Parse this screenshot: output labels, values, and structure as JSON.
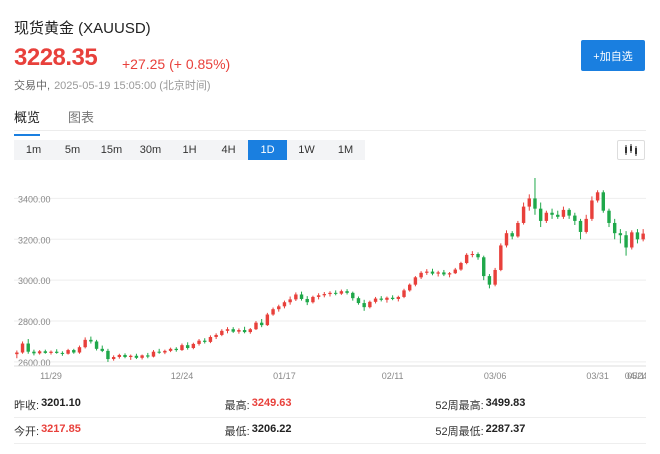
{
  "header": {
    "title": "现货黄金 (XAUUSD)",
    "price": "3228.35",
    "change": "+27.25 (+ 0.85%)",
    "status": "交易中,",
    "timestamp": "2025-05-19 15:05:00 (北京时间)",
    "add_button": "+加自选"
  },
  "tabs": [
    {
      "label": "概览",
      "active": true
    },
    {
      "label": "图表",
      "active": false
    }
  ],
  "periods": [
    {
      "label": "1m",
      "active": false
    },
    {
      "label": "5m",
      "active": false
    },
    {
      "label": "15m",
      "active": false
    },
    {
      "label": "30m",
      "active": false
    },
    {
      "label": "1H",
      "active": false
    },
    {
      "label": "4H",
      "active": false
    },
    {
      "label": "1D",
      "active": true
    },
    {
      "label": "1W",
      "active": false
    },
    {
      "label": "1M",
      "active": false
    }
  ],
  "chart_toggle_icon": "candlestick-icon",
  "colors": {
    "up": "#e8403b",
    "down": "#1fa84a",
    "accent": "#1a7fe0"
  },
  "chart_data": {
    "type": "candlestick",
    "y_ticks": [
      "3400.00",
      "3200.00",
      "3000.00",
      "2800.00",
      "2600.00"
    ],
    "ylim": [
      2580,
      3500
    ],
    "x_ticks": [
      "11/29",
      "12/24",
      "01/17",
      "02/11",
      "03/06",
      "03/31",
      "04/24",
      "05/1"
    ],
    "x_tick_index": [
      6,
      29,
      47,
      66,
      84,
      102,
      120,
      136
    ],
    "candles": [
      {
        "o": 2638,
        "h": 2656,
        "l": 2618,
        "c": 2646
      },
      {
        "o": 2646,
        "h": 2700,
        "l": 2640,
        "c": 2690
      },
      {
        "o": 2690,
        "h": 2712,
        "l": 2640,
        "c": 2650
      },
      {
        "o": 2650,
        "h": 2660,
        "l": 2632,
        "c": 2642
      },
      {
        "o": 2642,
        "h": 2658,
        "l": 2636,
        "c": 2652
      },
      {
        "o": 2652,
        "h": 2660,
        "l": 2640,
        "c": 2644
      },
      {
        "o": 2644,
        "h": 2656,
        "l": 2636,
        "c": 2650
      },
      {
        "o": 2650,
        "h": 2662,
        "l": 2640,
        "c": 2644
      },
      {
        "o": 2644,
        "h": 2652,
        "l": 2630,
        "c": 2640
      },
      {
        "o": 2640,
        "h": 2664,
        "l": 2636,
        "c": 2658
      },
      {
        "o": 2658,
        "h": 2664,
        "l": 2640,
        "c": 2646
      },
      {
        "o": 2646,
        "h": 2680,
        "l": 2640,
        "c": 2672
      },
      {
        "o": 2672,
        "h": 2720,
        "l": 2666,
        "c": 2708
      },
      {
        "o": 2708,
        "h": 2724,
        "l": 2690,
        "c": 2700
      },
      {
        "o": 2700,
        "h": 2708,
        "l": 2656,
        "c": 2664
      },
      {
        "o": 2664,
        "h": 2680,
        "l": 2648,
        "c": 2654
      },
      {
        "o": 2654,
        "h": 2664,
        "l": 2600,
        "c": 2614
      },
      {
        "o": 2614,
        "h": 2632,
        "l": 2606,
        "c": 2624
      },
      {
        "o": 2624,
        "h": 2640,
        "l": 2616,
        "c": 2634
      },
      {
        "o": 2634,
        "h": 2642,
        "l": 2618,
        "c": 2624
      },
      {
        "o": 2624,
        "h": 2636,
        "l": 2610,
        "c": 2630
      },
      {
        "o": 2630,
        "h": 2640,
        "l": 2614,
        "c": 2620
      },
      {
        "o": 2620,
        "h": 2636,
        "l": 2612,
        "c": 2632
      },
      {
        "o": 2632,
        "h": 2644,
        "l": 2618,
        "c": 2626
      },
      {
        "o": 2626,
        "h": 2658,
        "l": 2622,
        "c": 2650
      },
      {
        "o": 2650,
        "h": 2664,
        "l": 2640,
        "c": 2646
      },
      {
        "o": 2646,
        "h": 2660,
        "l": 2638,
        "c": 2654
      },
      {
        "o": 2654,
        "h": 2670,
        "l": 2648,
        "c": 2664
      },
      {
        "o": 2664,
        "h": 2672,
        "l": 2650,
        "c": 2658
      },
      {
        "o": 2658,
        "h": 2690,
        "l": 2654,
        "c": 2682
      },
      {
        "o": 2682,
        "h": 2696,
        "l": 2660,
        "c": 2668
      },
      {
        "o": 2668,
        "h": 2694,
        "l": 2662,
        "c": 2688
      },
      {
        "o": 2688,
        "h": 2712,
        "l": 2680,
        "c": 2704
      },
      {
        "o": 2704,
        "h": 2716,
        "l": 2690,
        "c": 2698
      },
      {
        "o": 2698,
        "h": 2730,
        "l": 2692,
        "c": 2722
      },
      {
        "o": 2722,
        "h": 2740,
        "l": 2712,
        "c": 2732
      },
      {
        "o": 2732,
        "h": 2760,
        "l": 2726,
        "c": 2752
      },
      {
        "o": 2752,
        "h": 2770,
        "l": 2740,
        "c": 2760
      },
      {
        "o": 2760,
        "h": 2770,
        "l": 2742,
        "c": 2748
      },
      {
        "o": 2748,
        "h": 2764,
        "l": 2738,
        "c": 2756
      },
      {
        "o": 2756,
        "h": 2772,
        "l": 2740,
        "c": 2746
      },
      {
        "o": 2746,
        "h": 2766,
        "l": 2738,
        "c": 2760
      },
      {
        "o": 2760,
        "h": 2800,
        "l": 2756,
        "c": 2792
      },
      {
        "o": 2792,
        "h": 2810,
        "l": 2770,
        "c": 2780
      },
      {
        "o": 2780,
        "h": 2840,
        "l": 2776,
        "c": 2832
      },
      {
        "o": 2832,
        "h": 2866,
        "l": 2826,
        "c": 2858
      },
      {
        "o": 2858,
        "h": 2880,
        "l": 2846,
        "c": 2872
      },
      {
        "o": 2872,
        "h": 2900,
        "l": 2862,
        "c": 2892
      },
      {
        "o": 2892,
        "h": 2920,
        "l": 2880,
        "c": 2906
      },
      {
        "o": 2906,
        "h": 2940,
        "l": 2898,
        "c": 2930
      },
      {
        "o": 2930,
        "h": 2944,
        "l": 2900,
        "c": 2908
      },
      {
        "o": 2908,
        "h": 2922,
        "l": 2878,
        "c": 2892
      },
      {
        "o": 2892,
        "h": 2924,
        "l": 2886,
        "c": 2918
      },
      {
        "o": 2918,
        "h": 2936,
        "l": 2906,
        "c": 2926
      },
      {
        "o": 2926,
        "h": 2942,
        "l": 2916,
        "c": 2932
      },
      {
        "o": 2932,
        "h": 2946,
        "l": 2920,
        "c": 2938
      },
      {
        "o": 2938,
        "h": 2950,
        "l": 2926,
        "c": 2934
      },
      {
        "o": 2934,
        "h": 2954,
        "l": 2928,
        "c": 2946
      },
      {
        "o": 2946,
        "h": 2956,
        "l": 2930,
        "c": 2938
      },
      {
        "o": 2938,
        "h": 2944,
        "l": 2900,
        "c": 2912
      },
      {
        "o": 2912,
        "h": 2920,
        "l": 2880,
        "c": 2888
      },
      {
        "o": 2888,
        "h": 2904,
        "l": 2850,
        "c": 2868
      },
      {
        "o": 2868,
        "h": 2900,
        "l": 2862,
        "c": 2894
      },
      {
        "o": 2894,
        "h": 2918,
        "l": 2886,
        "c": 2910
      },
      {
        "o": 2910,
        "h": 2922,
        "l": 2896,
        "c": 2904
      },
      {
        "o": 2904,
        "h": 2920,
        "l": 2890,
        "c": 2914
      },
      {
        "o": 2914,
        "h": 2926,
        "l": 2902,
        "c": 2908
      },
      {
        "o": 2908,
        "h": 2924,
        "l": 2896,
        "c": 2918
      },
      {
        "o": 2918,
        "h": 2958,
        "l": 2912,
        "c": 2950
      },
      {
        "o": 2950,
        "h": 2984,
        "l": 2944,
        "c": 2978
      },
      {
        "o": 2978,
        "h": 3020,
        "l": 2970,
        "c": 3014
      },
      {
        "o": 3014,
        "h": 3044,
        "l": 3006,
        "c": 3036
      },
      {
        "o": 3036,
        "h": 3054,
        "l": 3026,
        "c": 3042
      },
      {
        "o": 3042,
        "h": 3056,
        "l": 3024,
        "c": 3032
      },
      {
        "o": 3032,
        "h": 3046,
        "l": 3018,
        "c": 3038
      },
      {
        "o": 3038,
        "h": 3050,
        "l": 3020,
        "c": 3028
      },
      {
        "o": 3028,
        "h": 3040,
        "l": 3014,
        "c": 3034
      },
      {
        "o": 3034,
        "h": 3060,
        "l": 3030,
        "c": 3052
      },
      {
        "o": 3052,
        "h": 3090,
        "l": 3046,
        "c": 3084
      },
      {
        "o": 3084,
        "h": 3132,
        "l": 3078,
        "c": 3124
      },
      {
        "o": 3124,
        "h": 3142,
        "l": 3112,
        "c": 3128
      },
      {
        "o": 3128,
        "h": 3136,
        "l": 3100,
        "c": 3112
      },
      {
        "o": 3112,
        "h": 3120,
        "l": 3000,
        "c": 3020
      },
      {
        "o": 3020,
        "h": 3030,
        "l": 2960,
        "c": 2978
      },
      {
        "o": 2978,
        "h": 3060,
        "l": 2970,
        "c": 3050
      },
      {
        "o": 3050,
        "h": 3180,
        "l": 3044,
        "c": 3170
      },
      {
        "o": 3170,
        "h": 3244,
        "l": 3160,
        "c": 3230
      },
      {
        "o": 3230,
        "h": 3240,
        "l": 3200,
        "c": 3214
      },
      {
        "o": 3214,
        "h": 3290,
        "l": 3208,
        "c": 3280
      },
      {
        "o": 3280,
        "h": 3380,
        "l": 3272,
        "c": 3360
      },
      {
        "o": 3360,
        "h": 3420,
        "l": 3340,
        "c": 3400
      },
      {
        "o": 3400,
        "h": 3500,
        "l": 3320,
        "c": 3350
      },
      {
        "o": 3350,
        "h": 3380,
        "l": 3260,
        "c": 3290
      },
      {
        "o": 3290,
        "h": 3340,
        "l": 3280,
        "c": 3330
      },
      {
        "o": 3330,
        "h": 3350,
        "l": 3300,
        "c": 3320
      },
      {
        "o": 3320,
        "h": 3340,
        "l": 3300,
        "c": 3310
      },
      {
        "o": 3310,
        "h": 3360,
        "l": 3300,
        "c": 3344
      },
      {
        "o": 3344,
        "h": 3352,
        "l": 3300,
        "c": 3316
      },
      {
        "o": 3316,
        "h": 3330,
        "l": 3270,
        "c": 3290
      },
      {
        "o": 3290,
        "h": 3300,
        "l": 3200,
        "c": 3236
      },
      {
        "o": 3236,
        "h": 3320,
        "l": 3228,
        "c": 3300
      },
      {
        "o": 3300,
        "h": 3410,
        "l": 3290,
        "c": 3390
      },
      {
        "o": 3390,
        "h": 3440,
        "l": 3380,
        "c": 3430
      },
      {
        "o": 3430,
        "h": 3440,
        "l": 3330,
        "c": 3340
      },
      {
        "o": 3340,
        "h": 3350,
        "l": 3260,
        "c": 3280
      },
      {
        "o": 3280,
        "h": 3300,
        "l": 3200,
        "c": 3230
      },
      {
        "o": 3230,
        "h": 3250,
        "l": 3180,
        "c": 3220
      },
      {
        "o": 3220,
        "h": 3240,
        "l": 3120,
        "c": 3160
      },
      {
        "o": 3160,
        "h": 3244,
        "l": 3150,
        "c": 3234
      },
      {
        "o": 3234,
        "h": 3250,
        "l": 3180,
        "c": 3200
      },
      {
        "o": 3200,
        "h": 3250,
        "l": 3190,
        "c": 3228
      }
    ]
  },
  "stats": [
    [
      {
        "label": "昨收:",
        "value": "3201.10",
        "tone": "dark"
      },
      {
        "label": "最高:",
        "value": "3249.63",
        "tone": "red"
      },
      {
        "label": "52周最高:",
        "value": "3499.83",
        "tone": "dark"
      }
    ],
    [
      {
        "label": "今开:",
        "value": "3217.85",
        "tone": "red"
      },
      {
        "label": "最低:",
        "value": "3206.22",
        "tone": "dark"
      },
      {
        "label": "52周最低:",
        "value": "2287.37",
        "tone": "dark"
      }
    ]
  ]
}
